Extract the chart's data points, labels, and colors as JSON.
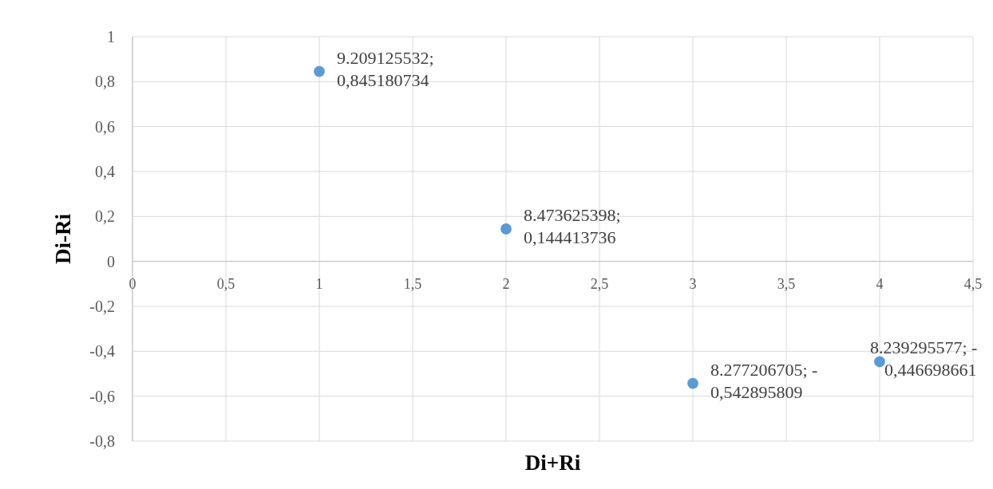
{
  "chart_data": {
    "type": "scatter",
    "xlabel": "Di+Ri",
    "ylabel": "Di-Ri",
    "x": [
      1,
      2,
      3,
      4
    ],
    "series": [
      {
        "color": "#5b9bd5",
        "values": [
          0.845180734,
          0.144413736,
          -0.542895809,
          -0.446698661
        ]
      }
    ],
    "value_labels": [
      "9.209125532; 0,845180734",
      "8.473625398; 0,144413736",
      "8.277206705; -0,542895809",
      "8.239295577; -0,446698661"
    ],
    "xlim": [
      0,
      4.5
    ],
    "xticks": [
      0,
      {
        "value": 0.5,
        "label": "0,5"
      },
      1,
      {
        "value": 1.5,
        "label": "1,5"
      },
      2,
      {
        "value": 2.5,
        "label": "2,5"
      },
      3,
      {
        "value": 3.5,
        "label": "3,5"
      },
      4,
      {
        "value": 4.5,
        "label": "4,5"
      }
    ],
    "ylim": [
      -0.8,
      1
    ],
    "yticks": [
      {
        "value": -0.8,
        "label": "-0,8"
      },
      {
        "value": -0.6,
        "label": "-0,6"
      },
      {
        "value": -0.4,
        "label": "-0,4"
      },
      {
        "value": -0.2,
        "label": "-0,2"
      },
      0,
      {
        "value": 0.2,
        "label": "0,2"
      },
      {
        "value": 0.4,
        "label": "0,4"
      },
      {
        "value": 0.6,
        "label": "0,6"
      },
      {
        "value": 0.8,
        "label": "0,8"
      },
      1
    ],
    "grid": true,
    "marker": "circle"
  }
}
